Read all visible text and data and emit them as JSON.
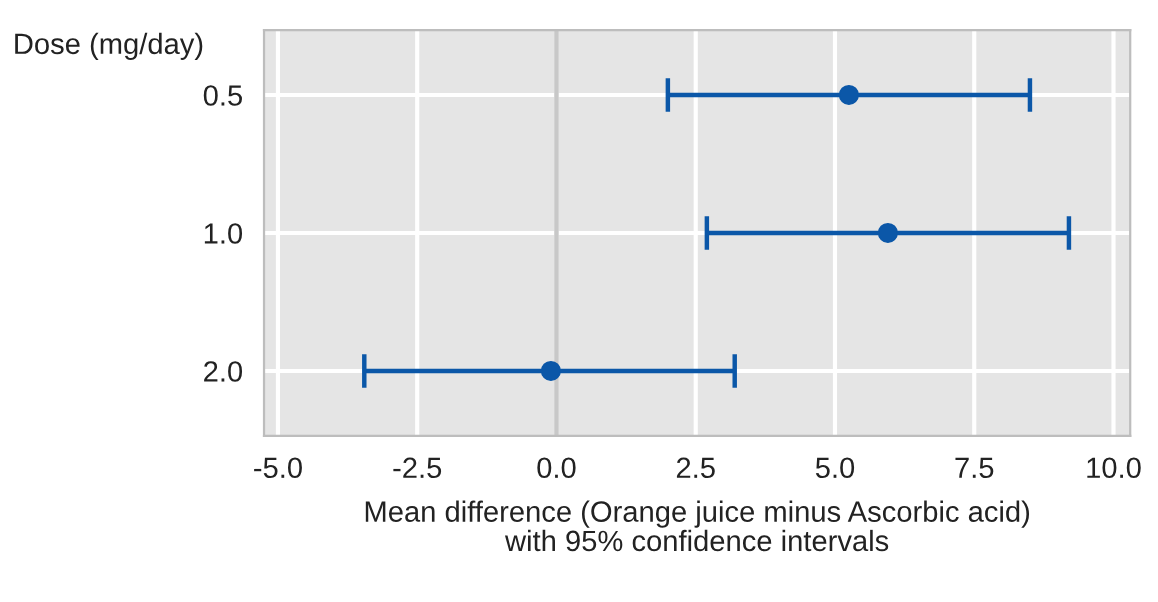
{
  "chart_data": {
    "type": "scatter",
    "orientation": "horizontal",
    "ylabel": "Dose (mg/day)",
    "xlabel": "Mean difference (Orange juice minus Ascorbic acid)\nwith 95% confidence intervals",
    "categories": [
      "0.5",
      "1.0",
      "2.0"
    ],
    "series": [
      {
        "color": "#0b57a8",
        "values": [
          5.25,
          5.95,
          -0.1
        ],
        "errors": [
          [
            2.0,
            8.5
          ],
          [
            2.7,
            9.2
          ],
          [
            -3.45,
            3.2
          ]
        ]
      }
    ],
    "xlim": [
      -5.25,
      10.3
    ],
    "xticks": [
      {
        "value": -5,
        "label": "-5.0"
      },
      {
        "value": -2.5,
        "label": "-2.5"
      },
      {
        "value": 0,
        "label": "0.0"
      },
      {
        "value": 2.5,
        "label": "2.5"
      },
      {
        "value": 5,
        "label": "5.0"
      },
      {
        "value": 7.5,
        "label": "7.5"
      },
      {
        "value": 10,
        "label": "10.0"
      }
    ],
    "ref_lines": [
      {
        "axis": "x",
        "value": 0,
        "color": "#c8c8c8"
      }
    ],
    "grid": true,
    "marker": "circle",
    "legend": false
  }
}
